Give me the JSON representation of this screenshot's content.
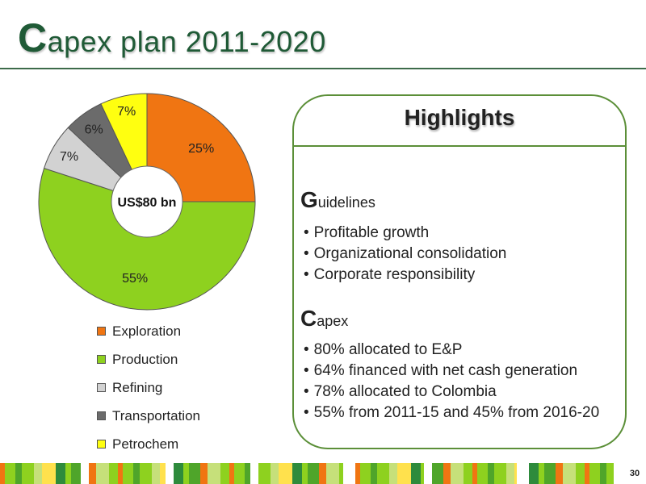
{
  "slide": {
    "title_initial": "C",
    "title_rest": "apex plan 2011-2020",
    "page_number": "30"
  },
  "chart_data": {
    "type": "pie",
    "center_label": "US$80 bn",
    "categories": [
      "Exploration",
      "Production",
      "Refining",
      "Transportation",
      "Petrochem"
    ],
    "values": [
      25,
      55,
      7,
      6,
      7
    ],
    "data_labels": [
      "25%",
      "55%",
      "7%",
      "6%",
      "7%"
    ],
    "colors": [
      "#f07512",
      "#8ed11f",
      "#d2d2d2",
      "#6b6b6b",
      "#ffff10"
    ],
    "legend_position": "bottom"
  },
  "highlights": {
    "heading": "Highlights",
    "guidelines": {
      "initial": "G",
      "rest": "uidelines",
      "items": [
        "Profitable growth",
        "Organizational consolidation",
        "Corporate responsibility"
      ]
    },
    "capex": {
      "initial": "C",
      "rest": "apex",
      "items": [
        "80% allocated to E&P",
        "64% financed with net cash generation",
        "78% allocated to Colombia",
        "55% from 2011-15 and 45% from 2016-20"
      ]
    }
  },
  "decor": {
    "stripe_colors": [
      "#f07512",
      "#8ed11f",
      "#4fa52a",
      "#c6e07a",
      "#ffe14d",
      "#2e8b3c"
    ]
  }
}
